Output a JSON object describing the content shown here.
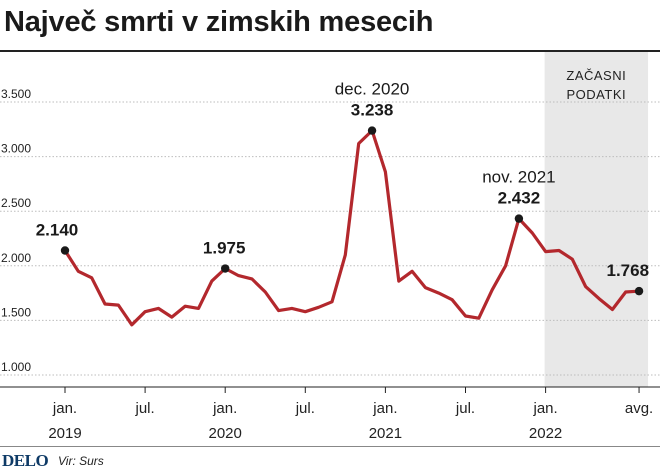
{
  "header": {
    "title": "Največ smrti v zimskih mesecih"
  },
  "footer": {
    "logo": "DELO",
    "source": "Vir: Surs"
  },
  "chart_data": {
    "type": "line",
    "title": "Največ smrti v zimskih mesecih",
    "xlabel": "",
    "ylabel": "",
    "ylim": [
      1000,
      3750
    ],
    "yticks": [
      1000,
      1500,
      2000,
      2500,
      3000,
      3500
    ],
    "ytick_labels": [
      "1.000",
      "1.500",
      "2.000",
      "2.500",
      "3.000",
      "3.500"
    ],
    "xticks": [
      {
        "index": 0,
        "line1": "jan.",
        "line2": "2019"
      },
      {
        "index": 6,
        "line1": "jul.",
        "line2": ""
      },
      {
        "index": 12,
        "line1": "jan.",
        "line2": "2020"
      },
      {
        "index": 18,
        "line1": "jul.",
        "line2": ""
      },
      {
        "index": 24,
        "line1": "jan.",
        "line2": "2021"
      },
      {
        "index": 30,
        "line1": "jul.",
        "line2": ""
      },
      {
        "index": 36,
        "line1": "jan.",
        "line2": "2022"
      },
      {
        "index": 43,
        "line1": "avg.",
        "line2": ""
      }
    ],
    "grid": true,
    "line_color": "#b3282d",
    "provisional_band": {
      "label_line1": "ZAČASNI",
      "label_line2": "PODATKI",
      "from_index": 36,
      "to_index": 43,
      "color": "#e8e8e8"
    },
    "series": [
      {
        "values": [
          2140,
          1950,
          1890,
          1650,
          1640,
          1460,
          1580,
          1610,
          1530,
          1630,
          1610,
          1860,
          1975,
          1910,
          1880,
          1760,
          1590,
          1610,
          1580,
          1620,
          1670,
          2100,
          3120,
          3238,
          2860,
          1860,
          1950,
          1800,
          1750,
          1690,
          1540,
          1520,
          1780,
          2000,
          2432,
          2300,
          2130,
          2140,
          2060,
          1810,
          1700,
          1600,
          1760,
          1768
        ]
      }
    ],
    "annotations": [
      {
        "index": 0,
        "label": "",
        "value_label": "2.140"
      },
      {
        "index": 12,
        "label": "",
        "value_label": "1.975"
      },
      {
        "index": 23,
        "label": "dec. 2020",
        "value_label": "3.238"
      },
      {
        "index": 34,
        "label": "nov. 2021",
        "value_label": "2.432"
      },
      {
        "index": 43,
        "label": "",
        "value_label": "1.768"
      }
    ]
  }
}
